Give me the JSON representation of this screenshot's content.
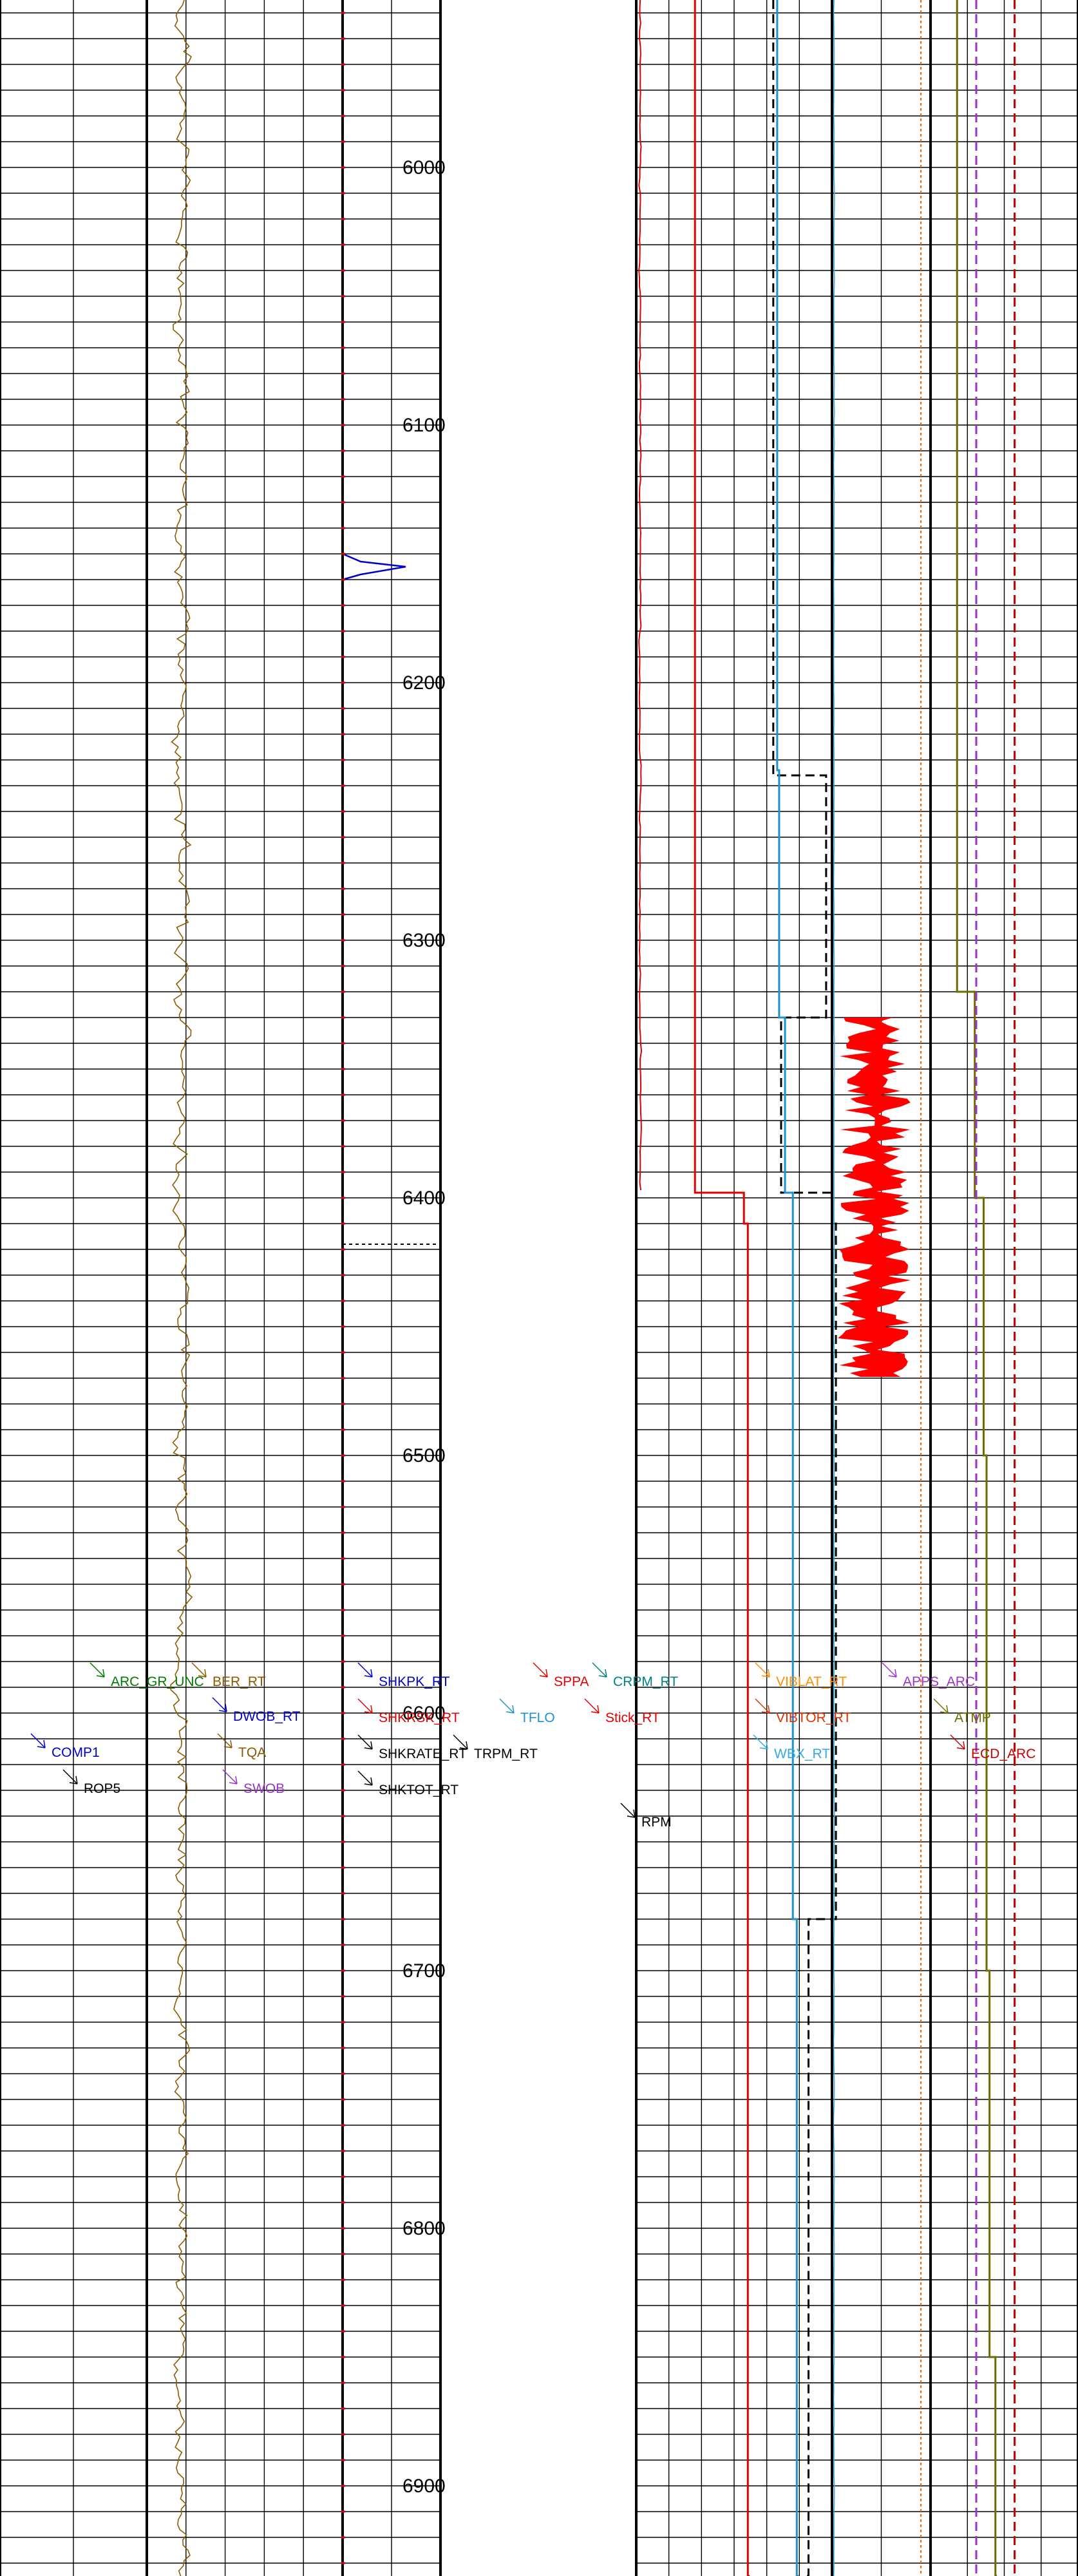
{
  "chart_data": {
    "type": "line",
    "title": "",
    "ylabel": "",
    "xlabel": "",
    "depth_axis": {
      "range": [
        5935,
        6935
      ],
      "ticks": [
        6000,
        6100,
        6200,
        6300,
        6400,
        6500,
        6600,
        6700,
        6800,
        6900
      ],
      "minor_interval": 10
    },
    "grid": true,
    "tracks": [
      {
        "name": "track-1",
        "curves": [
          "ARC_GR_UNC",
          "COMP1",
          "ROP5"
        ]
      },
      {
        "name": "track-2",
        "curves": [
          "TQA",
          "DWOB_RT",
          "SWOB",
          "BER_RT"
        ]
      },
      {
        "name": "track-3",
        "curves": [
          "SHKPK_RT",
          "SHKRSK_RT",
          "SHKRATE_RT",
          "SHKTOT_RT"
        ]
      },
      {
        "name": "depth-track",
        "curves": []
      },
      {
        "name": "track-5",
        "curves": [
          "SPPA",
          "TFLO",
          "TRPM_RT",
          "CRPM_RT",
          "Stick_RT"
        ]
      },
      {
        "name": "track-6",
        "curves": [
          "RPM",
          "VIBLAT_RT",
          "VIBTOR_RT",
          "WBX_RT"
        ]
      },
      {
        "name": "track-7",
        "curves": [
          "APPS_ARC",
          "ATMP",
          "ECD_ARC"
        ]
      }
    ],
    "curve_labels": [
      {
        "text": "ARC_GR_UNC",
        "color": "#007a00"
      },
      {
        "text": "BER_RT",
        "color": "#8b5a00"
      },
      {
        "text": "DWOB_RT",
        "color": "#0000cc"
      },
      {
        "text": "COMP1",
        "color": "#0000cc"
      },
      {
        "text": "TQA",
        "color": "#8b5a00"
      },
      {
        "text": "ROP5",
        "color": "#000000"
      },
      {
        "text": "SWOB",
        "color": "#9933cc"
      },
      {
        "text": "SHKPK_RT",
        "color": "#0000cc"
      },
      {
        "text": "SHKRSK_RT",
        "color": "#e00000"
      },
      {
        "text": "SHKRATE_RT",
        "color": "#000000"
      },
      {
        "text": "SHKTOT_RT",
        "color": "#000000"
      },
      {
        "text": "SPPA",
        "color": "#e00000"
      },
      {
        "text": "TFLO",
        "color": "#1f8fcf"
      },
      {
        "text": "TRPM_RT",
        "color": "#000000"
      },
      {
        "text": "CRPM_RT",
        "color": "#008080"
      },
      {
        "text": "Stick_RT",
        "color": "#e00000"
      },
      {
        "text": "RPM",
        "color": "#000000"
      },
      {
        "text": "VIBLAT_RT",
        "color": "#ff8c00"
      },
      {
        "text": "VIBTOR_RT",
        "color": "#e03000"
      },
      {
        "text": "WBX_RT",
        "color": "#33aadd"
      },
      {
        "text": "APPS_ARC",
        "color": "#9933cc"
      },
      {
        "text": "ATMP",
        "color": "#6b6b00"
      },
      {
        "text": "ECD_ARC",
        "color": "#cc0000"
      }
    ],
    "step_curves": [
      {
        "name": "SPPA",
        "color": "#e00000",
        "steps": [
          [
            5935,
            0.3
          ],
          [
            6300,
            0.3
          ],
          [
            6398,
            0.55
          ],
          [
            6410,
            0.57
          ],
          [
            6935,
            0.58
          ]
        ]
      },
      {
        "name": "TRPM_RT",
        "color": "#000000",
        "dashed": true,
        "steps": [
          [
            5935,
            0.7
          ],
          [
            6234,
            0.7
          ],
          [
            6236,
            0.97
          ],
          [
            6330,
            0.74
          ],
          [
            6398,
            1.0
          ],
          [
            6410,
            1.02
          ],
          [
            6680,
            0.88
          ],
          [
            6935,
            0.86
          ]
        ]
      },
      {
        "name": "TFLO",
        "color": "#1f8fcf",
        "steps": [
          [
            5935,
            0.72
          ],
          [
            6234,
            0.73
          ],
          [
            6330,
            0.76
          ],
          [
            6398,
            0.8
          ],
          [
            6680,
            0.82
          ],
          [
            6935,
            0.83
          ]
        ]
      },
      {
        "name": "ATMP",
        "color": "#6b6b00",
        "steps": [
          [
            5935,
            0.18
          ],
          [
            6285,
            0.18
          ],
          [
            6320,
            0.3
          ],
          [
            6400,
            0.36
          ],
          [
            6500,
            0.38
          ],
          [
            6700,
            0.4
          ],
          [
            6850,
            0.44
          ],
          [
            6935,
            0.45
          ]
        ]
      },
      {
        "name": "APPS_ARC",
        "color": "#9933cc",
        "dashed": true,
        "steps": [
          [
            5935,
            0.31
          ],
          [
            6935,
            0.31
          ]
        ]
      },
      {
        "name": "ECD_ARC",
        "color": "#cc0000",
        "dashed": true,
        "steps": [
          [
            5935,
            0.57
          ],
          [
            6935,
            0.57
          ]
        ]
      }
    ]
  }
}
